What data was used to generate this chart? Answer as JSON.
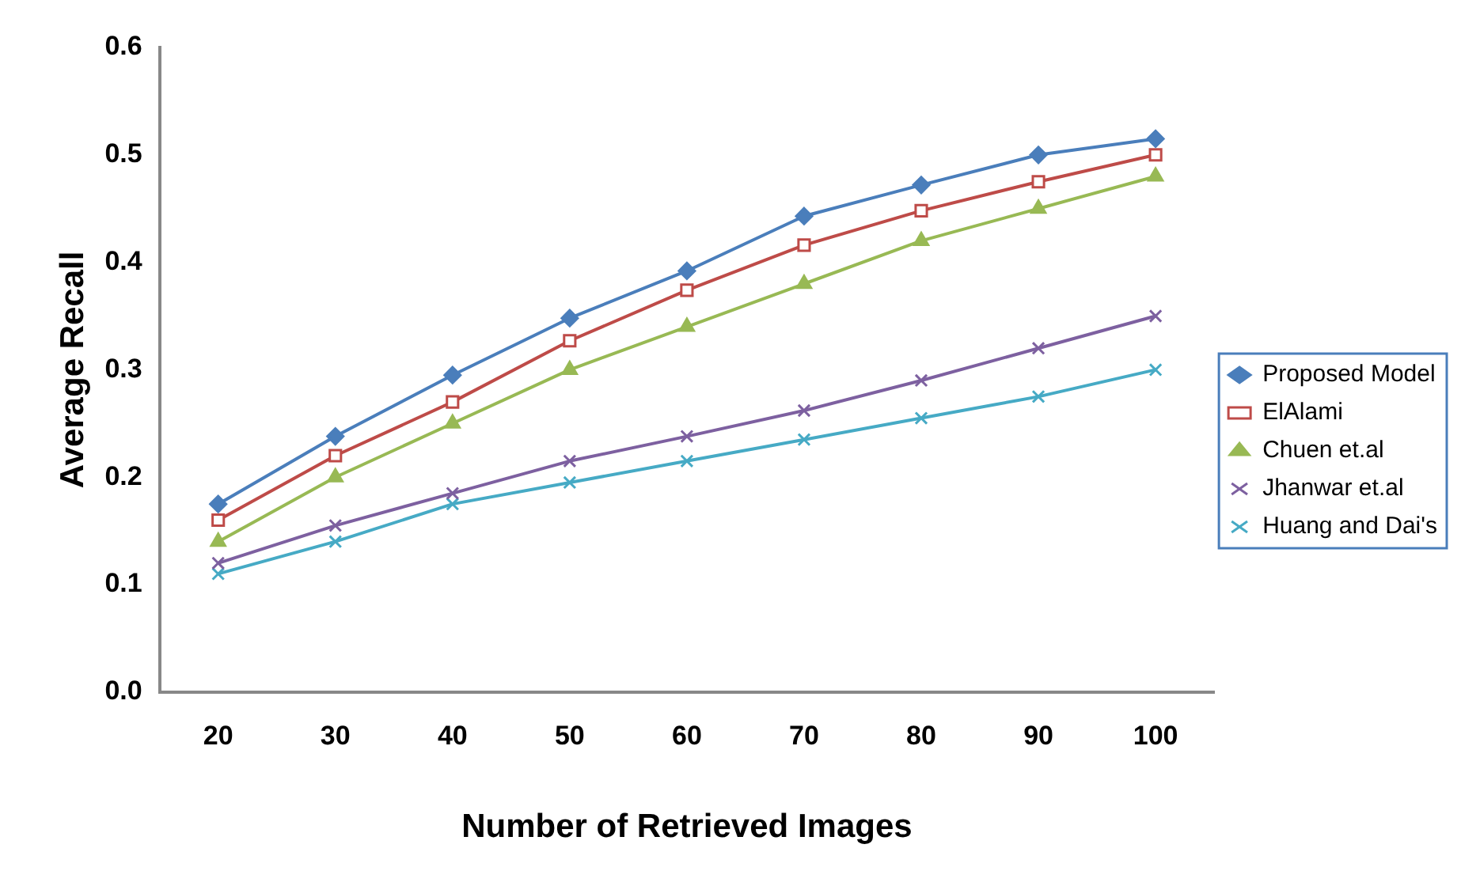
{
  "chart_data": {
    "type": "line",
    "xlabel": "Number of Retrieved Images",
    "ylabel": "Average Recall",
    "categories": [
      "20",
      "30",
      "40",
      "50",
      "60",
      "70",
      "80",
      "90",
      "100"
    ],
    "ylim": [
      0,
      0.6
    ],
    "yticks": [
      {
        "value": 0,
        "label": "0.0"
      },
      {
        "value": 0.1,
        "label": "0.1"
      },
      {
        "value": 0.2,
        "label": "0.2"
      },
      {
        "value": 0.3,
        "label": "0.3"
      },
      {
        "value": 0.4,
        "label": "0.4"
      },
      {
        "value": 0.5,
        "label": "0.5"
      },
      {
        "value": 0.6,
        "label": "0.6"
      }
    ],
    "grid": false,
    "legend": "right",
    "line_style": "solid",
    "series": [
      {
        "name": "Proposed Model",
        "color": "#4a7ebb",
        "marker": "diamond",
        "values": [
          0.175,
          0.238,
          0.295,
          0.348,
          0.392,
          0.443,
          0.472,
          0.5,
          0.515
        ]
      },
      {
        "name": "ElAlami",
        "color": "#be4b48",
        "marker": "square",
        "values": [
          0.16,
          0.22,
          0.27,
          0.327,
          0.374,
          0.416,
          0.448,
          0.475,
          0.5
        ]
      },
      {
        "name": "Chuen et.al",
        "color": "#98b954",
        "marker": "triangle",
        "values": [
          0.14,
          0.2,
          0.25,
          0.3,
          0.34,
          0.38,
          0.42,
          0.45,
          0.48
        ]
      },
      {
        "name": "Jhanwar et.al",
        "color": "#7d60a0",
        "marker": "cross",
        "values": [
          0.12,
          0.155,
          0.185,
          0.215,
          0.238,
          0.262,
          0.29,
          0.32,
          0.35
        ]
      },
      {
        "name": "Huang and Dai's",
        "color": "#46aac5",
        "marker": "cross",
        "values": [
          0.11,
          0.14,
          0.175,
          0.195,
          0.215,
          0.235,
          0.255,
          0.275,
          0.3
        ]
      }
    ]
  }
}
